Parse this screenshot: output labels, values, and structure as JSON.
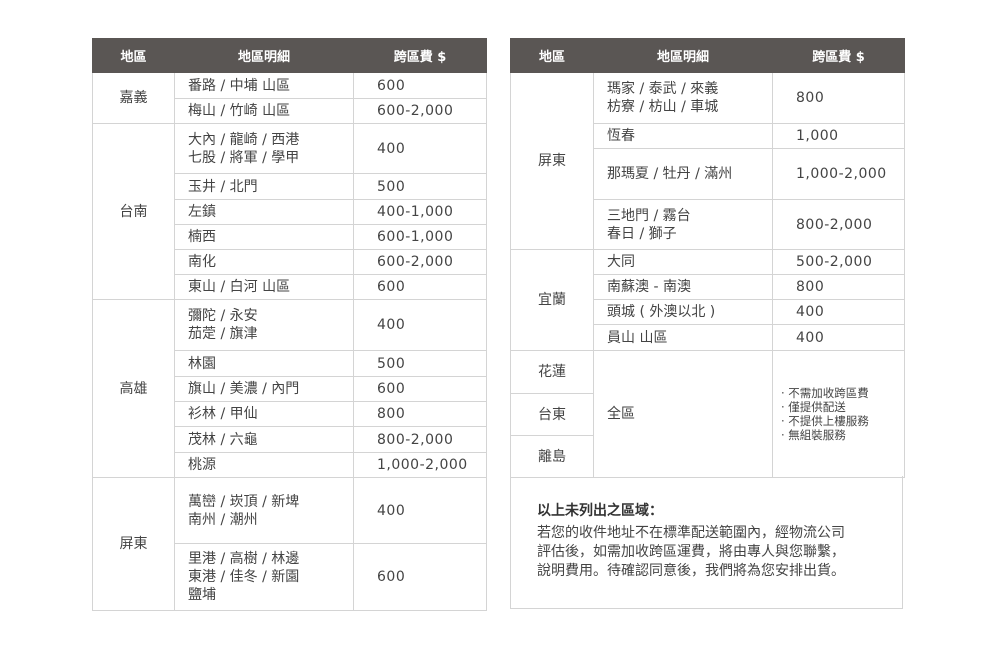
{
  "headers": {
    "region": "地區",
    "detail": "地區明細",
    "fee": "跨區費 $"
  },
  "left": [
    {
      "region": "嘉義",
      "rows": [
        {
          "detail": "番路 / 中埔 山區",
          "fee": "600"
        },
        {
          "detail": "梅山 / 竹崎 山區",
          "fee": "600-2,000"
        }
      ]
    },
    {
      "region": "台南",
      "rows": [
        {
          "detail": "大內 / 龍崎 / 西港\n七股 / 將軍 / 學甲",
          "fee": "400"
        },
        {
          "detail": "玉井 / 北門",
          "fee": "500"
        },
        {
          "detail": "左鎮",
          "fee": "400-1,000"
        },
        {
          "detail": "楠西",
          "fee": "600-1,000"
        },
        {
          "detail": "南化",
          "fee": "600-2,000"
        },
        {
          "detail": "東山 / 白河 山區",
          "fee": "600"
        }
      ]
    },
    {
      "region": "高雄",
      "rows": [
        {
          "detail": "彌陀 / 永安\n茄萣 / 旗津",
          "fee": "400"
        },
        {
          "detail": "林園",
          "fee": "500"
        },
        {
          "detail": "旗山 / 美濃 / 內門",
          "fee": "600"
        },
        {
          "detail": "衫林 / 甲仙",
          "fee": "800"
        },
        {
          "detail": "茂林 / 六龜",
          "fee": "800-2,000"
        },
        {
          "detail": "桃源",
          "fee": "1,000-2,000"
        }
      ]
    },
    {
      "region": "屏東",
      "rows": [
        {
          "detail": "萬巒 / 崁頂 / 新埤\n南州 / 潮州",
          "fee": "400"
        },
        {
          "detail": "里港 / 高樹 / 林邊\n東港 / 佳冬 / 新園\n鹽埔",
          "fee": "600"
        }
      ]
    }
  ],
  "right": [
    {
      "region": "屏東",
      "rows": [
        {
          "detail": "瑪家 / 泰武 / 來義\n枋寮 / 枋山 / 車城",
          "fee": "800"
        },
        {
          "detail": "恆春",
          "fee": "1,000"
        },
        {
          "detail": "那瑪夏 / 牡丹 / 滿州",
          "fee": "1,000-2,000"
        },
        {
          "detail": "三地門 / 霧台\n春日 / 獅子",
          "fee": "800-2,000"
        }
      ]
    },
    {
      "region": "宜蘭",
      "rows": [
        {
          "detail": "大同",
          "fee": "500-2,000"
        },
        {
          "detail": "南蘇澳 - 南澳",
          "fee": "800"
        },
        {
          "detail": "頭城 ( 外澳以北 )",
          "fee": "400"
        },
        {
          "detail": "員山 山區",
          "fee": "400"
        }
      ]
    }
  ],
  "remote": {
    "regions": [
      "花蓮",
      "台東",
      "離島"
    ],
    "detail": "全區",
    "notes": [
      "· 不需加收跨區費",
      "· 僅提供配送",
      "· 不提供上樓服務",
      "· 無組裝服務"
    ]
  },
  "note": {
    "title": "以上未列出之區域：",
    "body": "若您的收件地址不在標準配送範圍內，經物流公司\n評估後，如需加收跨區運費，將由專人與您聯繫，\n說明費用。待確認同意後，我們將為您安排出貨。"
  }
}
